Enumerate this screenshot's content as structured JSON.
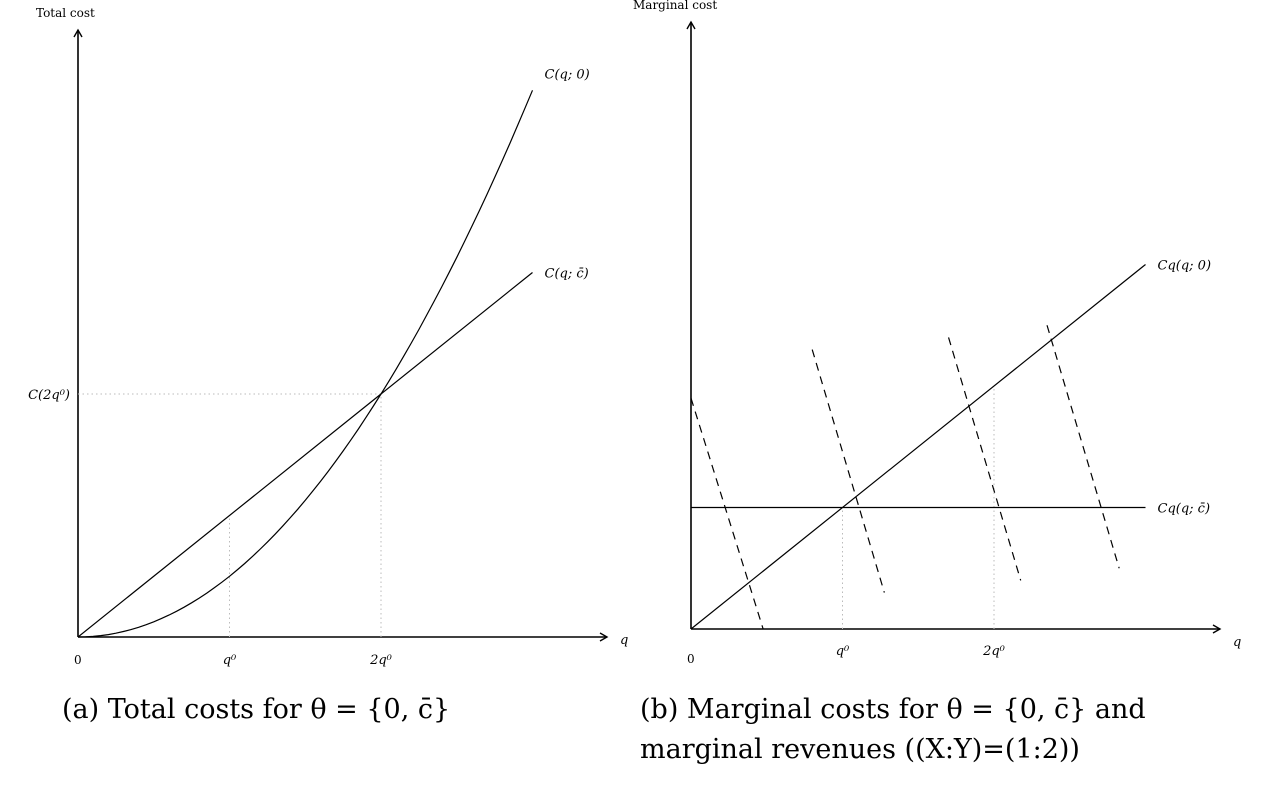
{
  "chart_data": [
    {
      "type": "line",
      "ylabel": "Total cost",
      "xlabel": "q",
      "x_origin_label": "0",
      "x_ticks": [
        {
          "value": 1,
          "label": "q⁰"
        },
        {
          "value": 2,
          "label": "2q⁰"
        }
      ],
      "y_ticks": [
        {
          "value": 2,
          "label": "C(2q⁰)"
        }
      ],
      "xlim": [
        0,
        3.5
      ],
      "ylim": [
        0,
        4
      ],
      "series": [
        {
          "name": "C(q; 0)",
          "shape": "quadratic",
          "x": [
            0,
            0.5,
            1,
            1.5,
            2,
            2.5,
            3
          ],
          "y": [
            0,
            0.125,
            0.5,
            1.125,
            2,
            3.125,
            4.5
          ]
        },
        {
          "name": "C(q; c̄)",
          "shape": "linear",
          "x": [
            0,
            1,
            2,
            3
          ],
          "y": [
            0,
            1,
            2,
            3
          ]
        }
      ],
      "caption": "(a) Total costs for θ = {0, c̄}"
    },
    {
      "type": "line",
      "ylabel": "Marginal cost",
      "xlabel": "q",
      "x_origin_label": "0",
      "x_ticks": [
        {
          "value": 1,
          "label": "q⁰"
        },
        {
          "value": 2,
          "label": "2q⁰"
        }
      ],
      "series": [
        {
          "name": "Cq(q; 0)",
          "x": [
            0,
            3
          ],
          "y": [
            0,
            3
          ]
        },
        {
          "name": "Cq(q; c̄)",
          "x": [
            0,
            3
          ],
          "y": [
            1,
            1
          ]
        }
      ],
      "marginal_revenue_lines": 4,
      "caption": "(b) Marginal costs for θ = {0, c̄} and marginal revenues ((X:Y)=(1:2))"
    }
  ]
}
